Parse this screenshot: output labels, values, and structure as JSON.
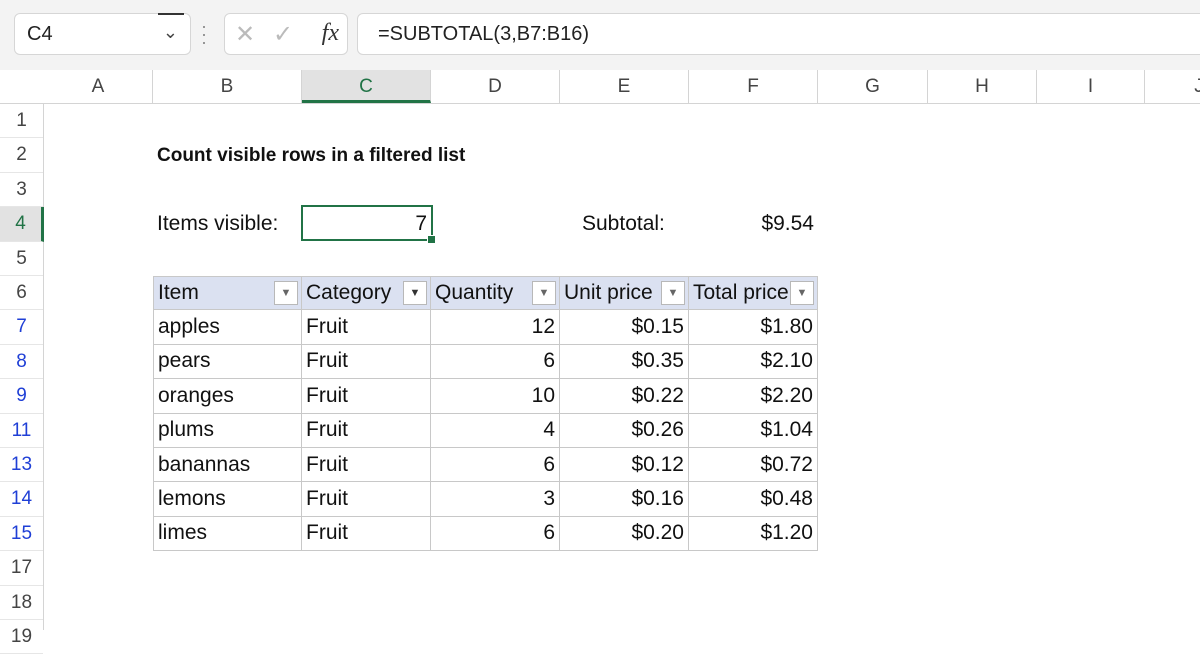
{
  "name_box": {
    "value": "C4"
  },
  "formula_bar": {
    "cancel_icon": "✕",
    "enter_icon": "✓",
    "fx_label": "fx",
    "formula": "=SUBTOTAL(3,B7:B16)"
  },
  "columns": [
    "A",
    "B",
    "C",
    "D",
    "E",
    "F",
    "G",
    "H",
    "I",
    "J"
  ],
  "selected_column": "C",
  "rows": [
    {
      "label": "1",
      "filtered": false
    },
    {
      "label": "2",
      "filtered": false
    },
    {
      "label": "3",
      "filtered": false
    },
    {
      "label": "4",
      "filtered": false
    },
    {
      "label": "5",
      "filtered": false
    },
    {
      "label": "6",
      "filtered": false
    },
    {
      "label": "7",
      "filtered": true
    },
    {
      "label": "8",
      "filtered": true
    },
    {
      "label": "9",
      "filtered": true
    },
    {
      "label": "11",
      "filtered": true
    },
    {
      "label": "13",
      "filtered": true
    },
    {
      "label": "14",
      "filtered": true
    },
    {
      "label": "15",
      "filtered": true
    },
    {
      "label": "17",
      "filtered": false
    },
    {
      "label": "18",
      "filtered": false
    },
    {
      "label": "19",
      "filtered": false
    }
  ],
  "selected_row": "4",
  "sheet": {
    "title": "Count visible rows in a filtered list",
    "items_visible_label": "Items visible:",
    "items_visible_value": "7",
    "subtotal_label": "Subtotal:",
    "subtotal_value": "$9.54"
  },
  "table": {
    "headers": [
      {
        "label": "Item",
        "filter_active": false
      },
      {
        "label": "Category",
        "filter_active": true
      },
      {
        "label": "Quantity",
        "filter_active": false
      },
      {
        "label": "Unit price",
        "filter_active": false
      },
      {
        "label": "Total price",
        "filter_active": false
      }
    ],
    "rows": [
      [
        "apples",
        "Fruit",
        "12",
        "$0.15",
        "$1.80"
      ],
      [
        "pears",
        "Fruit",
        "6",
        "$0.35",
        "$2.10"
      ],
      [
        "oranges",
        "Fruit",
        "10",
        "$0.22",
        "$2.20"
      ],
      [
        "plums",
        "Fruit",
        "4",
        "$0.26",
        "$1.04"
      ],
      [
        "banannas",
        "Fruit",
        "6",
        "$0.12",
        "$0.72"
      ],
      [
        "lemons",
        "Fruit",
        "3",
        "$0.16",
        "$0.48"
      ],
      [
        "limes",
        "Fruit",
        "6",
        "$0.20",
        "$1.20"
      ]
    ]
  },
  "colors": {
    "accent": "#217346",
    "filtered_row_number": "#1f3fd6",
    "table_header": "#dbe1f1"
  }
}
